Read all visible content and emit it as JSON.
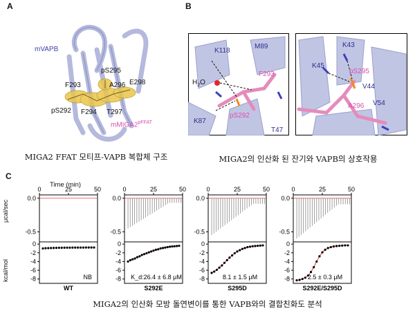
{
  "panels": {
    "a": {
      "letter": "A",
      "protein_label": "mVAPB",
      "peptide_label": "mMIGA2",
      "peptide_sup": "pFFAT",
      "residues": [
        "pS295",
        "F293",
        "A296",
        "E298",
        "pS292",
        "F294",
        "T297"
      ],
      "caption": "MIGA2 FFAT 모티프-VAPB 복합체 구조"
    },
    "b": {
      "letter": "B",
      "left_labels": [
        "K118",
        "M89",
        "F293",
        "K87",
        "pS292",
        "T47"
      ],
      "water": "H",
      "water_sub": "2",
      "water_o": "O",
      "right_labels": [
        "K43",
        "K45",
        "pS295",
        "V44",
        "A296",
        "V54"
      ],
      "caption": "MIGA2의 인산화 된 잔기와 VAPB의 상호작용"
    },
    "c": {
      "letter": "C",
      "time_label": "Time (min)",
      "ylabel_top": "μcal/sec",
      "ylabel_bottom": "kcal/mol",
      "caption": "MIGA2의 인산화 모방 돌연변이를 통한 VAPB와의 결합친화도 분석"
    }
  },
  "chart_data": [
    {
      "type": "scatter",
      "name": "WT",
      "x_ticks": [
        0,
        25,
        50
      ],
      "y_ticks_top": [
        0.0,
        -0.5
      ],
      "y_ticks_bottom": [
        0,
        -2,
        -4,
        -6,
        -8
      ],
      "ylim_top": [
        -0.65,
        0.05
      ],
      "ylim_bottom": [
        -9,
        0.5
      ],
      "injections": 25,
      "peak_scale": 0.0,
      "points": [
        -1.0,
        -0.95,
        -0.92,
        -0.9,
        -0.88,
        -0.86,
        -0.85,
        -0.84,
        -0.83,
        -0.82,
        -0.82,
        -0.81,
        -0.81,
        -0.8,
        -0.8,
        -0.8,
        -0.79,
        -0.79,
        -0.79,
        -0.78
      ],
      "annotation": "NB",
      "label": "WT"
    },
    {
      "type": "scatter",
      "name": "S292E",
      "x_ticks": [
        0,
        25,
        50
      ],
      "y_ticks_top": [
        0.0,
        -0.5
      ],
      "y_ticks_bottom": [
        0,
        -2,
        -4,
        -6,
        -8
      ],
      "ylim_top": [
        -0.65,
        0.05
      ],
      "ylim_bottom": [
        -9,
        0.5
      ],
      "injections": 25,
      "peak_scale": 0.45,
      "points": [
        -4.0,
        -3.7,
        -3.5,
        -3.3,
        -3.0,
        -2.8,
        -2.5,
        -2.3,
        -2.1,
        -1.9,
        -1.7,
        -1.5,
        -1.3,
        -1.2,
        -1.0,
        -0.9,
        -0.8,
        -0.7,
        -0.6,
        -0.55,
        -0.5,
        -0.45,
        -0.4
      ],
      "annotation": "K_d:26.4 ± 6.8 μM",
      "label": "S292E"
    },
    {
      "type": "scatter",
      "name": "S295D",
      "x_ticks": [
        0,
        25,
        50
      ],
      "y_ticks_top": [
        0.0,
        -0.5
      ],
      "y_ticks_bottom": [
        0,
        -2,
        -4,
        -6,
        -8
      ],
      "ylim_top": [
        -0.65,
        0.05
      ],
      "ylim_bottom": [
        -9,
        0.5
      ],
      "injections": 25,
      "peak_scale": 0.55,
      "points": [
        -6.6,
        -6.3,
        -5.9,
        -5.4,
        -4.9,
        -4.3,
        -3.7,
        -3.1,
        -2.6,
        -2.1,
        -1.7,
        -1.4,
        -1.1,
        -0.9,
        -0.7,
        -0.6,
        -0.5,
        -0.45,
        -0.4,
        -0.35,
        -0.3
      ],
      "annotation": "8.1 ± 1.5 μM",
      "label": "S295D"
    },
    {
      "type": "scatter",
      "name": "S292E/S295D",
      "x_ticks": [
        0,
        25,
        50
      ],
      "y_ticks_top": [
        0.0,
        -0.5
      ],
      "y_ticks_bottom": [
        0,
        -2,
        -4,
        -6,
        -8
      ],
      "ylim_top": [
        -0.65,
        0.05
      ],
      "ylim_bottom": [
        -9,
        0.5
      ],
      "injections": 25,
      "peak_scale": 0.6,
      "points": [
        -8.3,
        -8.2,
        -8.0,
        -7.7,
        -7.2,
        -6.4,
        -5.3,
        -4.0,
        -2.8,
        -1.9,
        -1.3,
        -0.9,
        -0.7,
        -0.55,
        -0.45,
        -0.4,
        -0.35,
        -0.3,
        -0.3
      ],
      "annotation": "2.5 ± 0.3 μM",
      "label": "S292E/S295D"
    }
  ]
}
